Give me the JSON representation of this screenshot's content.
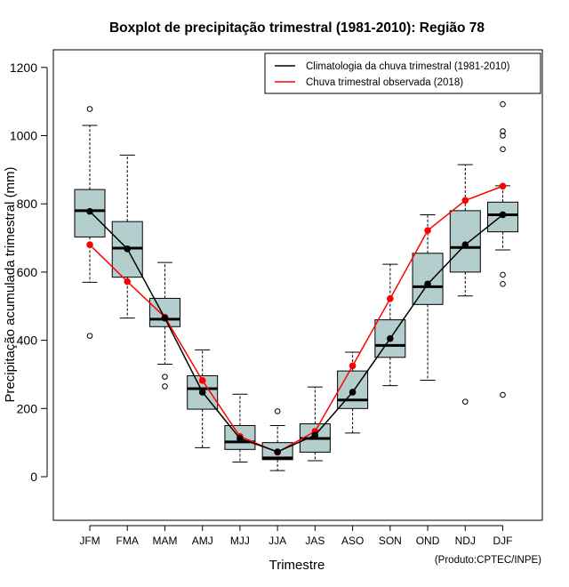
{
  "chart_data": {
    "type": "boxplot",
    "title": "Boxplot de precipitação trimestral (1981-2010): Região 78",
    "xlabel": "Trimestre",
    "ylabel": "Precipitação acumulada trimestral (mm)",
    "ylim": [
      -130,
      1240
    ],
    "yticks": [
      0,
      200,
      400,
      600,
      800,
      1000,
      1200
    ],
    "credit": "(Produto:CPTEC/INPE)",
    "legend": {
      "position": "top-right",
      "entries": [
        {
          "label": "Climatologia da chuva trimestral (1981-2010)",
          "color": "#000000"
        },
        {
          "label": "Chuva trimestral observada (2018)",
          "color": "#ff0000"
        }
      ]
    },
    "box_color": "#b4cece",
    "categories": [
      "JFM",
      "FMA",
      "MAM",
      "AMJ",
      "MJJ",
      "JJA",
      "JAS",
      "ASO",
      "SON",
      "OND",
      "NDJ",
      "DJF"
    ],
    "boxes": [
      {
        "whisker_low": 570,
        "q1": 703,
        "median": 780,
        "q3": 842,
        "whisker_high": 1030,
        "outliers": [
          1078,
          413
        ]
      },
      {
        "whisker_low": 465,
        "q1": 585,
        "median": 670,
        "q3": 748,
        "whisker_high": 943,
        "outliers": []
      },
      {
        "whisker_low": 330,
        "q1": 440,
        "median": 462,
        "q3": 523,
        "whisker_high": 628,
        "outliers": [
          293,
          265
        ]
      },
      {
        "whisker_low": 85,
        "q1": 198,
        "median": 258,
        "q3": 296,
        "whisker_high": 372,
        "outliers": []
      },
      {
        "whisker_low": 43,
        "q1": 80,
        "median": 102,
        "q3": 150,
        "whisker_high": 242,
        "outliers": []
      },
      {
        "whisker_low": 18,
        "q1": 50,
        "median": 55,
        "q3": 100,
        "whisker_high": 150,
        "outliers": [
          192
        ]
      },
      {
        "whisker_low": 47,
        "q1": 72,
        "median": 112,
        "q3": 155,
        "whisker_high": 263,
        "outliers": []
      },
      {
        "whisker_low": 128,
        "q1": 200,
        "median": 225,
        "q3": 310,
        "whisker_high": 365,
        "outliers": []
      },
      {
        "whisker_low": 267,
        "q1": 350,
        "median": 385,
        "q3": 460,
        "whisker_high": 623,
        "outliers": []
      },
      {
        "whisker_low": 283,
        "q1": 505,
        "median": 557,
        "q3": 655,
        "whisker_high": 768,
        "outliers": []
      },
      {
        "whisker_low": 530,
        "q1": 600,
        "median": 672,
        "q3": 780,
        "whisker_high": 915,
        "outliers": [
          220
        ]
      },
      {
        "whisker_low": 665,
        "q1": 718,
        "median": 768,
        "q3": 805,
        "whisker_high": 853,
        "outliers": [
          1092,
          1013,
          1000,
          960,
          592,
          565,
          240
        ]
      }
    ],
    "series": [
      {
        "name": "Climatologia da chuva trimestral (1981-2010)",
        "color": "#000000",
        "values": [
          778,
          668,
          465,
          248,
          112,
          73,
          122,
          248,
          405,
          565,
          680,
          768
        ]
      },
      {
        "name": "Chuva trimestral observada (2018)",
        "color": "#ff0000",
        "values": [
          680,
          572,
          468,
          282,
          118,
          72,
          133,
          325,
          522,
          722,
          810,
          852
        ]
      }
    ]
  }
}
